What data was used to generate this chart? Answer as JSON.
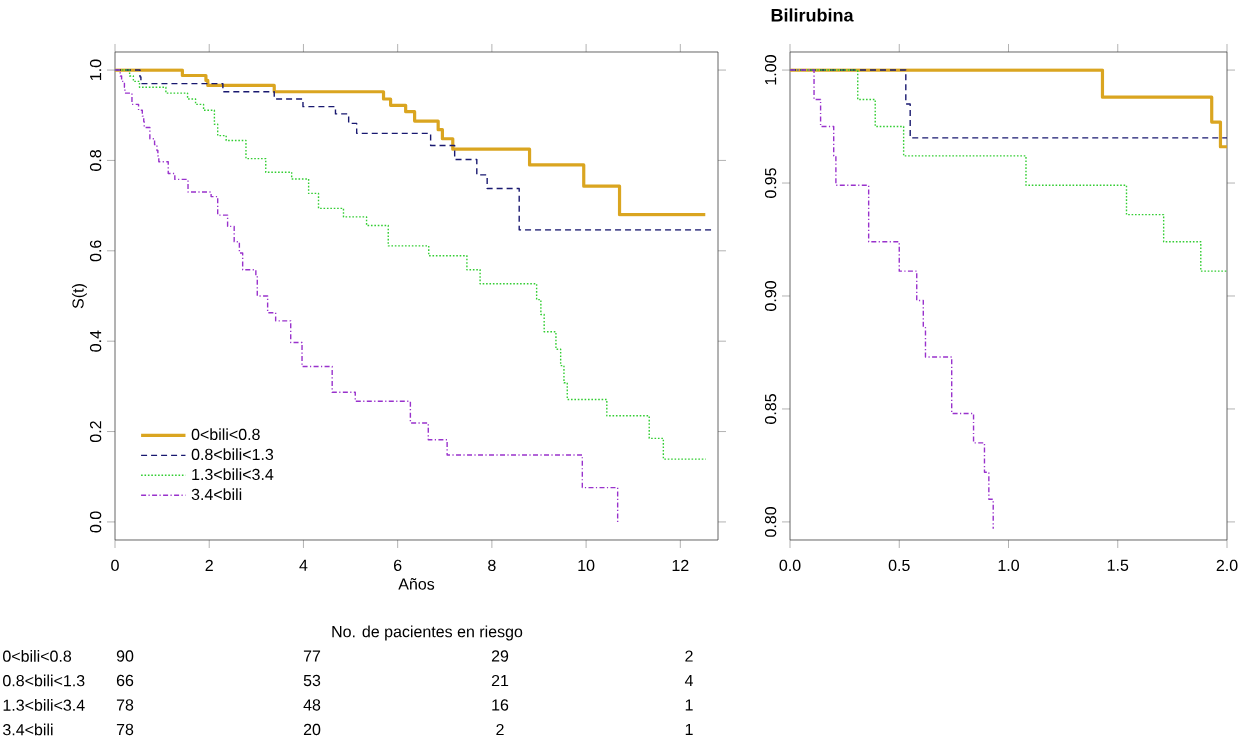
{
  "chart_data": [
    {
      "type": "step",
      "xlabel": "Años",
      "ylabel": "S(t)",
      "xlim": [
        0,
        12.8
      ],
      "ylim": [
        -0.04,
        1.04
      ],
      "xticks": [
        0,
        2,
        4,
        6,
        8,
        10,
        12
      ],
      "yticks": [
        {
          "value": 0,
          "label": "0.0"
        },
        0.2,
        0.4,
        0.6,
        0.8,
        {
          "value": 1,
          "label": "1.0"
        }
      ],
      "grid": false,
      "legend": "bottom left",
      "series": [
        {
          "name": "0<bili<0.8",
          "color": "#daa520",
          "line_style": "solid",
          "x": [
            0,
            1.43,
            1.93,
            1.97,
            3.38,
            5.7,
            5.85,
            6.17,
            6.36,
            6.86,
            6.95,
            7.17,
            8.8,
            9.95,
            10.71,
            12.53
          ],
          "values": [
            1,
            0.988,
            0.977,
            0.966,
            0.952,
            0.936,
            0.922,
            0.908,
            0.887,
            0.868,
            0.848,
            0.825,
            0.79,
            0.743,
            0.68,
            0.68
          ]
        },
        {
          "name": "0.8<bili<1.3",
          "color": "#191970",
          "line_style": "dashed",
          "x": [
            0,
            0.53,
            0.55,
            2.29,
            3.38,
            3.99,
            4.68,
            4.96,
            5.13,
            6.7,
            7.21,
            7.68,
            7.9,
            8.58,
            12.66
          ],
          "values": [
            1,
            0.985,
            0.97,
            0.952,
            0.936,
            0.919,
            0.903,
            0.882,
            0.86,
            0.833,
            0.802,
            0.768,
            0.738,
            0.646,
            0.646
          ]
        },
        {
          "name": "1.3<bili<3.4",
          "color": "#32cd32",
          "line_style": "dotted",
          "x": [
            0,
            0.31,
            0.39,
            0.52,
            1.08,
            1.54,
            1.71,
            1.88,
            2.11,
            2.18,
            2.36,
            2.78,
            3.2,
            3.75,
            4.11,
            4.32,
            4.85,
            5.34,
            5.8,
            6.66,
            7.47,
            7.75,
            8.95,
            9.04,
            9.11,
            9.36,
            9.46,
            9.53,
            9.6,
            10.44,
            11.34,
            11.64,
            12.54
          ],
          "values": [
            1,
            0.987,
            0.975,
            0.962,
            0.949,
            0.936,
            0.924,
            0.911,
            0.88,
            0.855,
            0.844,
            0.804,
            0.774,
            0.759,
            0.727,
            0.694,
            0.675,
            0.656,
            0.611,
            0.589,
            0.558,
            0.527,
            0.492,
            0.459,
            0.421,
            0.382,
            0.346,
            0.308,
            0.271,
            0.235,
            0.185,
            0.139,
            0.139
          ]
        },
        {
          "name": "3.4<bili",
          "color": "#9932cc",
          "line_style": "dashdot",
          "x": [
            0,
            0.11,
            0.14,
            0.2,
            0.21,
            0.36,
            0.5,
            0.58,
            0.61,
            0.62,
            0.74,
            0.84,
            0.89,
            0.91,
            0.93,
            1.13,
            1.27,
            1.55,
            2.04,
            2.18,
            2.39,
            2.53,
            2.64,
            2.71,
            2.99,
            3.02,
            3.24,
            3.41,
            3.73,
            3.97,
            4.61,
            5.1,
            6.27,
            6.65,
            7.05,
            9.92,
            10.67
          ],
          "values": [
            1,
            0.987,
            0.975,
            0.962,
            0.949,
            0.924,
            0.911,
            0.898,
            0.886,
            0.873,
            0.848,
            0.835,
            0.822,
            0.81,
            0.797,
            0.771,
            0.758,
            0.73,
            0.72,
            0.679,
            0.654,
            0.62,
            0.595,
            0.558,
            0.544,
            0.5,
            0.463,
            0.445,
            0.397,
            0.344,
            0.287,
            0.267,
            0.219,
            0.182,
            0.148,
            0.076,
            0
          ]
        }
      ],
      "annotations": [
        "No. de pacientes en riesgo",
        "0<bili<0.8",
        "90",
        "77",
        "29",
        "2",
        "0.8<bili<1.3",
        "66",
        "53",
        "21",
        "4",
        "1.3<bili<3.4",
        "78",
        "48",
        "16",
        "1",
        "3.4<bili",
        "78",
        "20",
        "2",
        "1"
      ]
    },
    {
      "type": "step",
      "title": "Bilirubina",
      "xlim": [
        0,
        2
      ],
      "ylim": [
        0.792,
        1.008
      ],
      "xticks": [
        {
          "value": 0,
          "label": "0.0"
        },
        {
          "value": 0.5,
          "label": "0.5"
        },
        {
          "value": 1,
          "label": "1.0"
        },
        {
          "value": 1.5,
          "label": "1.5"
        },
        {
          "value": 2,
          "label": "2.0"
        }
      ],
      "yticks": [
        {
          "value": 0.8,
          "label": "0.80"
        },
        0.85,
        {
          "value": 0.9,
          "label": "0.90"
        },
        0.95,
        {
          "value": 1,
          "label": "1.00"
        }
      ],
      "grid": false,
      "legend": false,
      "series": [
        {
          "color": "#daa520",
          "line_style": "solid",
          "x": [
            0,
            1.43,
            1.93,
            1.97,
            2.0
          ],
          "values": [
            1,
            0.988,
            0.977,
            0.966,
            0.966
          ]
        },
        {
          "color": "#191970",
          "line_style": "dashed",
          "x": [
            0,
            0.53,
            0.55,
            2.0
          ],
          "values": [
            1,
            0.985,
            0.97,
            0.97
          ]
        },
        {
          "color": "#32cd32",
          "line_style": "dotted",
          "x": [
            0,
            0.31,
            0.39,
            0.52,
            1.08,
            1.54,
            1.71,
            1.88,
            2.0
          ],
          "values": [
            1,
            0.987,
            0.975,
            0.962,
            0.949,
            0.936,
            0.924,
            0.911,
            0.911
          ]
        },
        {
          "color": "#9932cc",
          "line_style": "dashdot",
          "x": [
            0,
            0.11,
            0.14,
            0.2,
            0.21,
            0.36,
            0.5,
            0.58,
            0.61,
            0.62,
            0.74,
            0.84,
            0.89,
            0.91,
            0.93
          ],
          "values": [
            1,
            0.987,
            0.975,
            0.962,
            0.949,
            0.924,
            0.911,
            0.898,
            0.886,
            0.873,
            0.848,
            0.835,
            0.822,
            0.81,
            0.797
          ]
        }
      ]
    }
  ]
}
